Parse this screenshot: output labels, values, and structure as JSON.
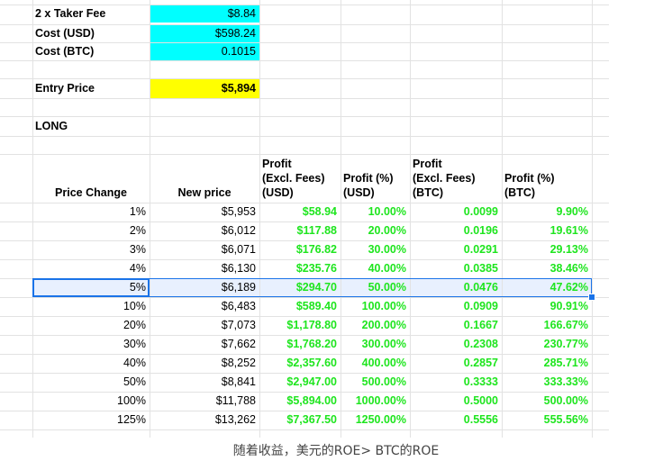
{
  "top": [
    {
      "label": "2 x Taker Fee",
      "value": "$8.84"
    },
    {
      "label": "Cost (USD)",
      "value": "$598.24"
    },
    {
      "label": "Cost (BTC)",
      "value": "0.1015"
    }
  ],
  "entry": {
    "label": "Entry Price",
    "value": "$5,894"
  },
  "section_label": "LONG",
  "headers": {
    "price_change": "Price Change",
    "new_price": "New price",
    "profit_usd_1": "Profit",
    "profit_usd_2": "(Excl. Fees)",
    "profit_usd_3": "(USD)",
    "profit_pct_usd_1": "Profit (%)",
    "profit_pct_usd_2": "(USD)",
    "profit_btc_1": "Profit",
    "profit_btc_2": "(Excl. Fees)",
    "profit_btc_3": "(BTC)",
    "profit_pct_btc_1": "Profit (%)",
    "profit_pct_btc_2": "(BTC)"
  },
  "rows": [
    [
      "1%",
      "$5,953",
      "$58.94",
      "10.00%",
      "0.0099",
      "9.90%"
    ],
    [
      "2%",
      "$6,012",
      "$117.88",
      "20.00%",
      "0.0196",
      "19.61%"
    ],
    [
      "3%",
      "$6,071",
      "$176.82",
      "30.00%",
      "0.0291",
      "29.13%"
    ],
    [
      "4%",
      "$6,130",
      "$235.76",
      "40.00%",
      "0.0385",
      "38.46%"
    ],
    [
      "5%",
      "$6,189",
      "$294.70",
      "50.00%",
      "0.0476",
      "47.62%"
    ],
    [
      "10%",
      "$6,483",
      "$589.40",
      "100.00%",
      "0.0909",
      "90.91%"
    ],
    [
      "20%",
      "$7,073",
      "$1,178.80",
      "200.00%",
      "0.1667",
      "166.67%"
    ],
    [
      "30%",
      "$7,662",
      "$1,768.20",
      "300.00%",
      "0.2308",
      "230.77%"
    ],
    [
      "40%",
      "$8,252",
      "$2,357.60",
      "400.00%",
      "0.2857",
      "285.71%"
    ],
    [
      "50%",
      "$8,841",
      "$2,947.00",
      "500.00%",
      "0.3333",
      "333.33%"
    ],
    [
      "100%",
      "$11,788",
      "$5,894.00",
      "1000.00%",
      "0.5000",
      "500.00%"
    ],
    [
      "125%",
      "$13,262",
      "$7,367.50",
      "1250.00%",
      "0.5556",
      "555.56%"
    ]
  ],
  "selected_row_index": 4,
  "caption": "随着收益，美元的ROE> BTC的ROE",
  "colors": {
    "highlight_cyan": "#00ffff",
    "highlight_yellow": "#ffff00",
    "profit_green": "#1ee51e",
    "selection_blue": "#1a73e8"
  }
}
